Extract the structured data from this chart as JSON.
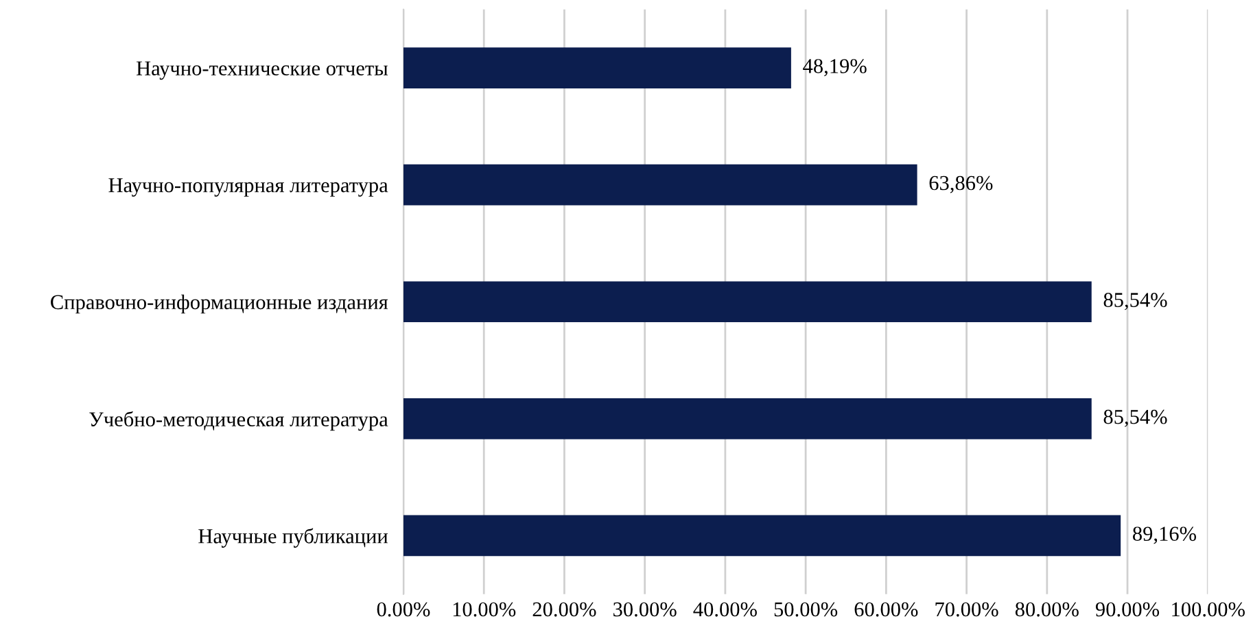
{
  "chart_data": {
    "type": "bar",
    "orientation": "horizontal",
    "categories": [
      "Научно-технические отчеты",
      "Научно-популярная литература",
      "Справочно-информационные издания",
      "Учебно-методическая литература",
      "Научные публикации"
    ],
    "values": [
      48.19,
      63.86,
      85.54,
      85.54,
      89.16
    ],
    "value_labels": [
      "48,19%",
      "63,86%",
      "85,54%",
      "85,54%",
      "89,16%"
    ],
    "color": "#0c1e4f",
    "xlim": [
      0,
      100
    ],
    "xticks": [
      {
        "value": 0,
        "label": "0.00%"
      },
      {
        "value": 10,
        "label": "10.00%"
      },
      {
        "value": 20,
        "label": "20.00%"
      },
      {
        "value": 30,
        "label": "30.00%"
      },
      {
        "value": 40,
        "label": "40.00%"
      },
      {
        "value": 50,
        "label": "50.00%"
      },
      {
        "value": 60,
        "label": "60.00%"
      },
      {
        "value": 70,
        "label": "70.00%"
      },
      {
        "value": 80,
        "label": "80.00%"
      },
      {
        "value": 90,
        "label": "90.00%"
      },
      {
        "value": 100,
        "label": "100.00%"
      }
    ],
    "grid": "x"
  }
}
